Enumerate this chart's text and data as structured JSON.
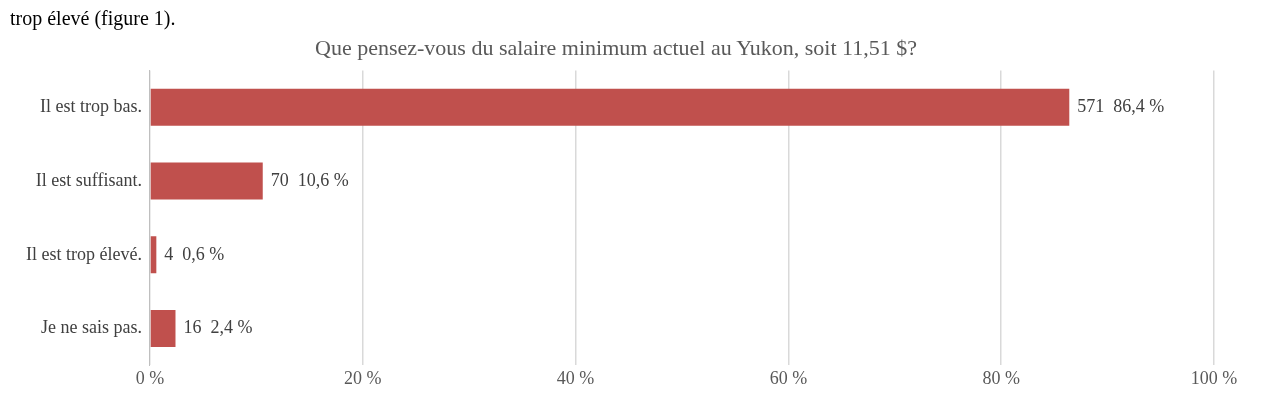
{
  "chart_data": {
    "type": "bar",
    "orientation": "horizontal",
    "title": "Que pensez-vous du salaire minimum actuel au Yukon, soit 11,51 $?",
    "annotations": [
      "trop élevé (figure 1)."
    ],
    "categories": [
      "Il est trop bas.",
      "Il est suffisant.",
      "Il est trop élevé.",
      "Je ne sais pas."
    ],
    "values": [
      86.4,
      10.6,
      0.6,
      2.4
    ],
    "value_labels": [
      "571  86,4 %",
      "70  10,6 %",
      "4  0,6 %",
      "16  2,4 %"
    ],
    "color": "#c0504d",
    "xlim": [
      0,
      100
    ],
    "xticks": [
      {
        "value": 0,
        "label": "0 %"
      },
      {
        "value": 20,
        "label": "20 %"
      },
      {
        "value": 40,
        "label": "40 %"
      },
      {
        "value": 60,
        "label": "60 %"
      },
      {
        "value": 80,
        "label": "80 %"
      },
      {
        "value": 100,
        "label": "100 %"
      }
    ],
    "grid": "x",
    "legend": false
  }
}
